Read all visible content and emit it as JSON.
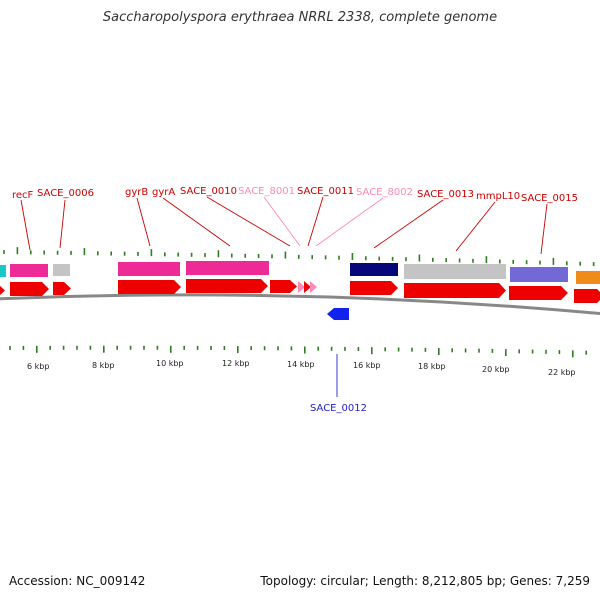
{
  "title": "Saccharopolyspora erythraea NRRL 2338, complete genome",
  "footer": {
    "accession": "Accession: NC_009142",
    "stats": "Topology: circular; Length: 8,212,805 bp; Genes: 7,259"
  },
  "colors": {
    "tick": "#2e7d1f",
    "backbone": "#888888",
    "cds": "#ee0000",
    "label_red": "#cc0000",
    "label_pink": "#ff88b8",
    "label_blue": "#2222cc",
    "magenta": "#ee2a96",
    "gray": "#c4c4c4",
    "navy": "#07077a",
    "purple": "#7268d6",
    "orange": "#f08a18",
    "cyan": "#18c8c8",
    "blue": "#1122ee"
  },
  "scale_labels": [
    "6 kbp",
    "8 kbp",
    "10 kbp",
    "12 kbp",
    "14 kbp",
    "16 kbp",
    "18 kbp",
    "20 kbp",
    "22 kbp"
  ],
  "gene_labels": [
    {
      "text": "recF",
      "color": "label_red"
    },
    {
      "text": "SACE_0006",
      "color": "label_red"
    },
    {
      "text": "gyrB",
      "color": "label_red"
    },
    {
      "text": "gyrA",
      "color": "label_red"
    },
    {
      "text": "SACE_0010",
      "color": "label_red"
    },
    {
      "text": "SACE_8001",
      "color": "label_pink"
    },
    {
      "text": "SACE_0011",
      "color": "label_red"
    },
    {
      "text": "SACE_8002",
      "color": "label_pink"
    },
    {
      "text": "SACE_0013",
      "color": "label_red"
    },
    {
      "text": "mmpL10",
      "color": "label_red"
    },
    {
      "text": "SACE_0015",
      "color": "label_red"
    },
    {
      "text": "SACE_0012",
      "color": "label_blue"
    }
  ]
}
